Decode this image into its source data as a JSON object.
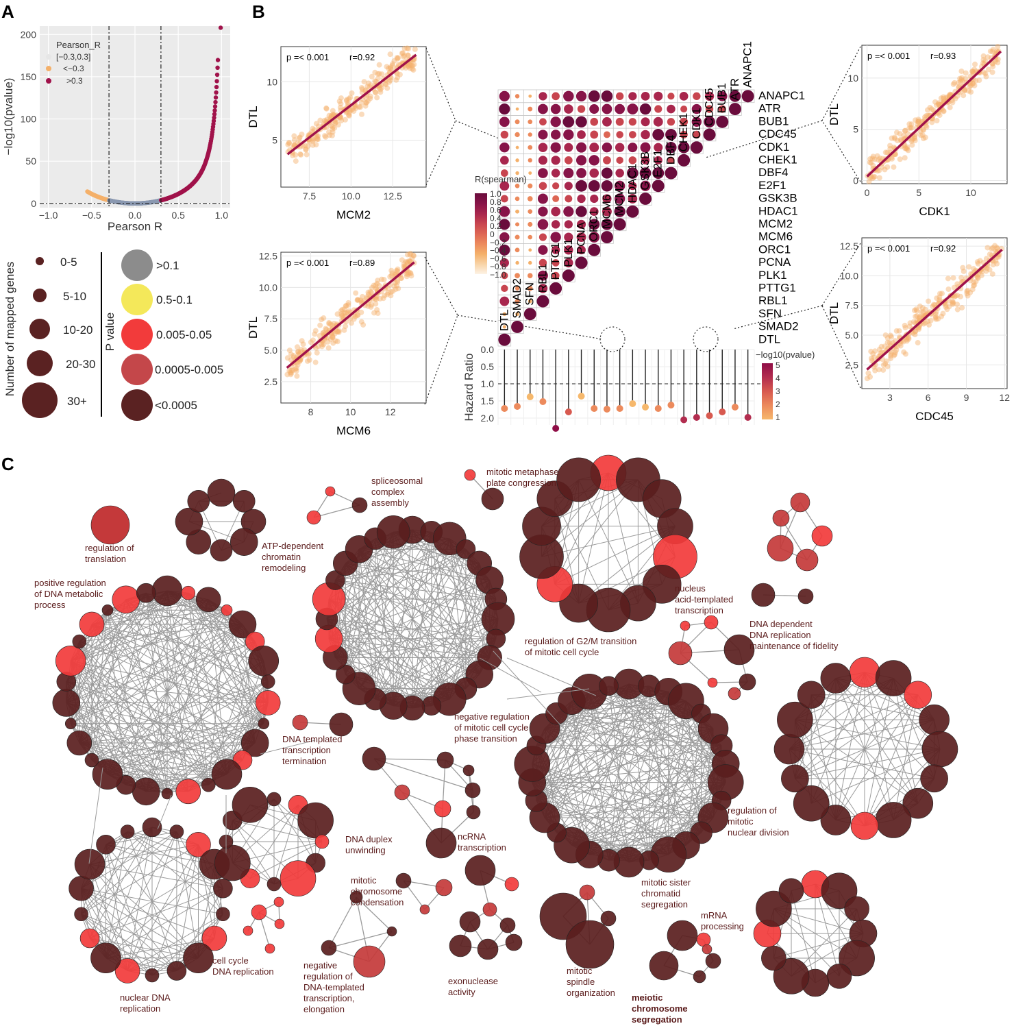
{
  "panels": {
    "a": "A",
    "b": "B",
    "c": "C"
  },
  "panel_a": {
    "legend_title": "Pearson_R",
    "legend_items": [
      {
        "label": "[−0.3,0.3]",
        "color": "#8a98b0"
      },
      {
        "label": "<−0.3",
        "color": "#f4b06a"
      },
      {
        "label": ">0.3",
        "color": "#a0124a"
      }
    ]
  },
  "chart_data": [
    {
      "type": "scatter",
      "id": "volcano",
      "title": "",
      "xlabel": "Pearson R",
      "ylabel": "−log10(pvalue)",
      "xlim": [
        -1.1,
        1.1
      ],
      "ylim": [
        -5,
        210
      ],
      "xticks": [
        -1.0,
        -0.5,
        0.0,
        0.5,
        1.0
      ],
      "xtick_labels": [
        "−1.0",
        "−0.5",
        "0.0",
        "0.5",
        "1.0"
      ],
      "yticks": [
        0,
        50,
        100,
        150,
        200
      ],
      "ytick_labels": [
        "0",
        "50",
        "100",
        "150",
        "200"
      ],
      "vlines": [
        -0.3,
        0.3
      ],
      "hline": 0,
      "curve": {
        "description": "-log10(p) as function of R",
        "x_min": -0.55,
        "x_max": 0.96
      }
    },
    {
      "type": "scatter",
      "id": "mcm2",
      "xlabel": "MCM2",
      "ylabel": "DTL",
      "annotation_p": "p =< 0.001",
      "annotation_r": "r=0.92",
      "xlim": [
        5.8,
        14.5
      ],
      "ylim": [
        1,
        13
      ],
      "xticks": [
        7.5,
        10.0,
        12.5
      ],
      "xtick_labels": [
        "7.5",
        "10.0",
        "12.5"
      ],
      "yticks": [
        5,
        10
      ],
      "ytick_labels": [
        "5",
        "10"
      ],
      "line": {
        "x0": 6.2,
        "y0": 3.8,
        "x1": 13.9,
        "y1": 12.3
      }
    },
    {
      "type": "scatter",
      "id": "mcm6",
      "xlabel": "MCM6",
      "ylabel": "DTL",
      "annotation_p": "p =< 0.001",
      "annotation_r": "r=0.89",
      "xlim": [
        6.5,
        13.8
      ],
      "ylim": [
        0.8,
        12.8
      ],
      "xticks": [
        8,
        10,
        12
      ],
      "xtick_labels": [
        "8",
        "10",
        "12"
      ],
      "yticks": [
        2.5,
        5.0,
        7.5,
        10.0,
        12.5
      ],
      "ytick_labels": [
        "2.5",
        "5.0",
        "7.5",
        "10.0",
        "12.5"
      ],
      "line": {
        "x0": 6.8,
        "y0": 3.6,
        "x1": 13.2,
        "y1": 12.0
      }
    },
    {
      "type": "scatter",
      "id": "cdk1",
      "xlabel": "CDK1",
      "ylabel": "DTL",
      "annotation_p": "p =< 0.001",
      "annotation_r": "r=0.93",
      "xlim": [
        -0.5,
        13.5
      ],
      "ylim": [
        -0.3,
        13.2
      ],
      "xticks": [
        0,
        5,
        10
      ],
      "xtick_labels": [
        "0",
        "5",
        "10"
      ],
      "yticks": [
        0,
        5,
        10
      ],
      "ytick_labels": [
        "0",
        "5",
        "10"
      ],
      "line": {
        "x0": 0,
        "y0": 0.4,
        "x1": 12.9,
        "y1": 12.6
      }
    },
    {
      "type": "scatter",
      "id": "cdc45",
      "xlabel": "CDC45",
      "ylabel": "DTL",
      "annotation_p": "p =< 0.001",
      "annotation_r": "r=0.92",
      "xlim": [
        0.8,
        12.2
      ],
      "ylim": [
        0.5,
        13.2
      ],
      "xticks": [
        3,
        6,
        9,
        12
      ],
      "xtick_labels": [
        "3",
        "6",
        "9",
        "12"
      ],
      "yticks": [
        2.5,
        5.0,
        7.5,
        10.0,
        12.5
      ],
      "ytick_labels": [
        "2.5",
        "5.0",
        "7.5",
        "10.0",
        "12.5"
      ],
      "line": {
        "x0": 1.2,
        "y0": 2.1,
        "x1": 11.8,
        "y1": 12.2
      }
    },
    {
      "type": "heatmap",
      "id": "corr",
      "title": "R(spearman)",
      "genes_right": [
        "ANAPC1",
        "ATR",
        "BUB1",
        "CDC45",
        "CDK1",
        "CHEK1",
        "DBF4",
        "E2F1",
        "GSK3B",
        "HDAC1",
        "MCM2",
        "MCM6",
        "ORC1",
        "PCNA",
        "PLK1",
        "PTTG1",
        "RBL1",
        "SFN",
        "SMAD2",
        "DTL"
      ],
      "genes_diag": [
        "DTL",
        "SMAD2",
        "SFN",
        "RBL1",
        "PTTG1",
        "PLK1",
        "PCNA",
        "ORC1",
        "MCM6",
        "MCM2",
        "HDAC1",
        "GSK3B",
        "E2F1",
        "DBF4",
        "CHEK1",
        "CDK1",
        "CDC45",
        "BUB1",
        "ATR",
        "ANAPC1"
      ],
      "colorbar_ticks": [
        "1.0",
        "0.8",
        "0.6",
        "0.4",
        "0.2",
        "0",
        "−0.2",
        "−0.4",
        "−0.6",
        "−0.8",
        "−1.0"
      ],
      "weak_genes": [
        "SFN",
        "SMAD2"
      ]
    },
    {
      "type": "scatter",
      "id": "hazard",
      "ylabel": "Hazard Ratio",
      "yticks": [
        0.0,
        0.5,
        1.0,
        1.5,
        2.0
      ],
      "ytick_labels": [
        "0.0",
        "0.5",
        "1.0",
        "1.5",
        "2.0"
      ],
      "genes": [
        "DTL",
        "SMAD2",
        "SFN",
        "RBL1",
        "PTTG1",
        "PLK1",
        "PCNA",
        "ORC1",
        "MCM6",
        "MCM2",
        "HDAC1",
        "GSK3B",
        "E2F1",
        "DBF4",
        "CHEK1",
        "CDK1",
        "CDC45",
        "BUB1",
        "ATR",
        "ANAPC1"
      ],
      "values": [
        1.72,
        1.66,
        1.38,
        1.52,
        2.3,
        1.82,
        1.36,
        1.72,
        1.74,
        1.72,
        1.58,
        1.68,
        1.72,
        1.62,
        2.05,
        1.98,
        1.93,
        1.82,
        1.68,
        1.98
      ],
      "logp": [
        2.0,
        1.5,
        1.2,
        1.8,
        5.0,
        2.5,
        1.2,
        2.2,
        2.3,
        2.2,
        1.3,
        1.2,
        1.8,
        1.5,
        4.0,
        3.5,
        3.0,
        2.5,
        1.8,
        3.5
      ],
      "colorbar_title": "−log10(pvalue)",
      "colorbar_ticks": [
        "5",
        "4",
        "3",
        "2",
        "1"
      ]
    }
  ],
  "size_legend": {
    "title": "Number of mapped genes",
    "items": [
      "0-5",
      "5-10",
      "10-20",
      "20-30",
      "30+"
    ]
  },
  "pvalue_legend": {
    "title": "P value",
    "items": [
      {
        "label": ">0.1",
        "color": "#8c8c8c"
      },
      {
        "label": "0.5-0.1",
        "color": "#f4e85a"
      },
      {
        "label": "0.005-0.05",
        "color": "#f23b3b"
      },
      {
        "label": "0.0005-0.005",
        "color": "#c4474a"
      },
      {
        "label": "<0.0005",
        "color": "#5a2222"
      }
    ]
  },
  "network_labels": [
    [
      "regulation of",
      "translation"
    ],
    [
      "ATP-dependent",
      "chromatin",
      "remodeling"
    ],
    [
      "spliceosomal",
      "complex",
      "assembly"
    ],
    [
      "mitotic metaphase",
      "plate congression"
    ],
    [
      "positive regulation",
      "of DNA metabolic",
      "process"
    ],
    [
      "regulation of G2/M transition",
      "of mitotic cell cycle"
    ],
    [
      "nucleus",
      "acid-templated",
      "transcription"
    ],
    [
      "DNA dependent",
      "DNA replication",
      "maintenance of fidelity"
    ],
    [
      "negative regulation",
      "of mitotic cell cycle",
      "phase transition"
    ],
    [
      "DNA templated",
      "transcription",
      "termination"
    ],
    [
      "ncRNA",
      "transcription"
    ],
    [
      "DNA duplex",
      "unwinding"
    ],
    [
      "regulation of",
      "mitotic",
      "nuclear division"
    ],
    [
      "mitotic",
      "chromosome",
      "condensation"
    ],
    [
      "mitotic sister",
      "chromatid",
      "segregation"
    ],
    [
      "mRNA",
      "processing"
    ],
    [
      "cell cycle",
      "DNA replication"
    ],
    [
      "nuclear DNA",
      "replication"
    ],
    [
      "negative",
      "regulation of",
      "DNA-templated",
      "transcription,",
      "elongation"
    ],
    [
      "exonuclease",
      "activity"
    ],
    [
      "mitotic",
      "spindle",
      "organization"
    ],
    [
      "meiotic",
      "chromosome",
      "segregation"
    ]
  ]
}
